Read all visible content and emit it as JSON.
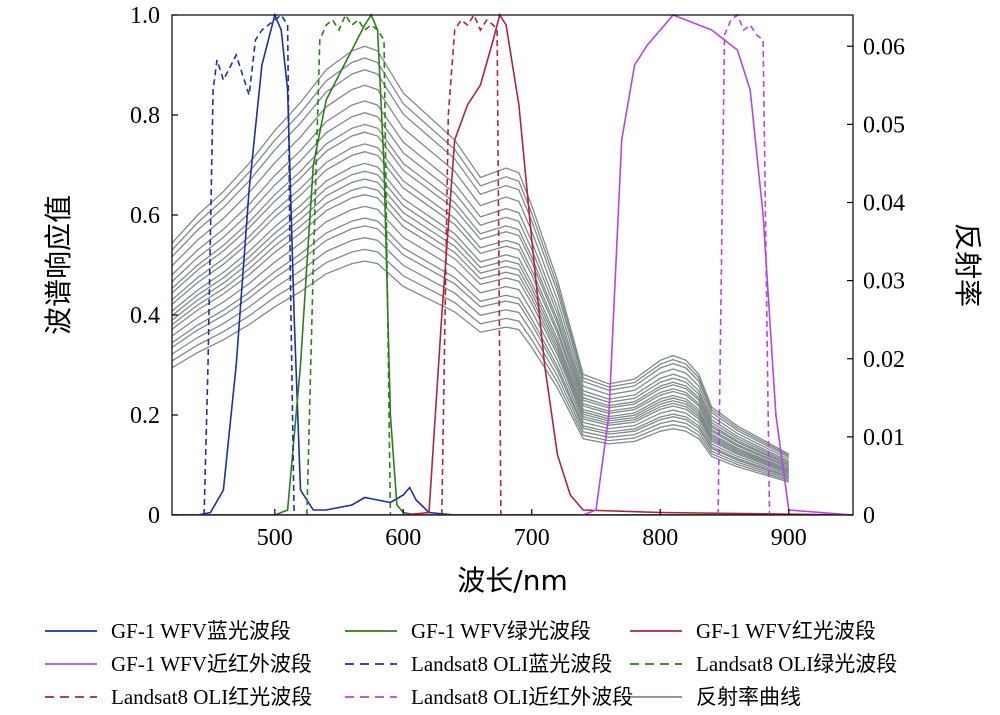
{
  "chart_data": {
    "type": "line",
    "title": "",
    "xlabel": "波长/nm",
    "ylabel_left": "波谱响应值",
    "ylabel_right": "反射率",
    "xlim": [
      420,
      950
    ],
    "ylim_left": [
      0,
      1
    ],
    "ylim_right": [
      0,
      0.064
    ],
    "x_ticks": [
      500,
      600,
      700,
      800,
      900
    ],
    "x_tick_labels": [
      "500",
      "600",
      "700",
      "800",
      "900"
    ],
    "y_left_ticks": [
      0,
      0.2,
      0.4,
      0.6,
      0.8,
      1.0
    ],
    "y_left_tick_labels": [
      "0",
      "0.2",
      "0.4",
      "0.6",
      "0.8",
      "1.0"
    ],
    "y_right_ticks": [
      0,
      0.01,
      0.02,
      0.03,
      0.04,
      0.05,
      0.06
    ],
    "y_right_tick_labels": [
      "0",
      "0.01",
      "0.02",
      "0.03",
      "0.04",
      "0.05",
      "0.06"
    ],
    "grid": false,
    "legend_placement": "bottom",
    "legend_columns": 3,
    "series": [
      {
        "name": "GF-1 WFV蓝光波段",
        "axis": "left",
        "style": "solid",
        "color": "#1f2fa8",
        "x": [
          420,
          440,
          450,
          460,
          470,
          480,
          490,
          500,
          505,
          510,
          515,
          520,
          530,
          540,
          560,
          570,
          580,
          590,
          600,
          605,
          610,
          620,
          640,
          700,
          950
        ],
        "y": [
          0,
          0,
          0.005,
          0.05,
          0.3,
          0.65,
          0.9,
          1.0,
          0.97,
          0.85,
          0.4,
          0.05,
          0.01,
          0.01,
          0.02,
          0.035,
          0.03,
          0.025,
          0.04,
          0.055,
          0.03,
          0.005,
          0,
          0,
          0
        ]
      },
      {
        "name": "GF-1 WFV绿光波段",
        "axis": "left",
        "style": "solid",
        "color": "#2e7d1a",
        "x": [
          420,
          500,
          510,
          520,
          530,
          540,
          550,
          560,
          570,
          575,
          580,
          585,
          590,
          595,
          600,
          610,
          700,
          950
        ],
        "y": [
          0,
          0,
          0.01,
          0.3,
          0.7,
          0.83,
          0.88,
          0.93,
          0.98,
          1.0,
          0.97,
          0.7,
          0.2,
          0.02,
          0.005,
          0,
          0,
          0
        ]
      },
      {
        "name": "GF-1 WFV红光波段",
        "axis": "left",
        "style": "solid",
        "color": "#b0243c",
        "x": [
          420,
          600,
          620,
          630,
          640,
          650,
          660,
          670,
          675,
          680,
          690,
          700,
          710,
          720,
          730,
          740,
          800,
          950
        ],
        "y": [
          0,
          0,
          0.005,
          0.4,
          0.75,
          0.82,
          0.86,
          0.95,
          1.0,
          0.98,
          0.82,
          0.55,
          0.3,
          0.12,
          0.04,
          0.01,
          0.005,
          0
        ]
      },
      {
        "name": "GF-1 WFV近红外波段",
        "axis": "left",
        "style": "solid",
        "color": "#b545e8",
        "x": [
          420,
          740,
          750,
          760,
          770,
          780,
          790,
          800,
          810,
          820,
          830,
          840,
          850,
          860,
          870,
          880,
          890,
          900,
          950
        ],
        "y": [
          0,
          0,
          0.01,
          0.2,
          0.75,
          0.9,
          0.94,
          0.97,
          1.0,
          0.99,
          0.98,
          0.97,
          0.95,
          0.93,
          0.85,
          0.6,
          0.2,
          0.01,
          0
        ]
      },
      {
        "name": "Landsat8 OLI蓝光波段",
        "axis": "left",
        "style": "dashed",
        "color": "#1f2fa8",
        "x": [
          445,
          448,
          452,
          455,
          460,
          470,
          480,
          485,
          490,
          500,
          505,
          510,
          512,
          515
        ],
        "y": [
          0,
          0.3,
          0.85,
          0.91,
          0.87,
          0.92,
          0.84,
          0.95,
          0.97,
          0.99,
          1.0,
          0.98,
          0.5,
          0
        ]
      },
      {
        "name": "Landsat8 OLI绿光波段",
        "axis": "left",
        "style": "dashed",
        "color": "#2e7d1a",
        "x": [
          525,
          530,
          535,
          540,
          545,
          550,
          555,
          560,
          565,
          570,
          575,
          580,
          585,
          590
        ],
        "y": [
          0,
          0.5,
          0.95,
          0.98,
          0.99,
          0.97,
          1.0,
          0.98,
          0.99,
          0.97,
          0.98,
          0.97,
          0.95,
          0
        ]
      },
      {
        "name": "Landsat8 OLI红光波段",
        "axis": "left",
        "style": "dashed",
        "color": "#b0243c",
        "x": [
          630,
          635,
          640,
          645,
          650,
          655,
          660,
          665,
          670,
          673,
          676
        ],
        "y": [
          0,
          0.8,
          0.97,
          0.99,
          0.98,
          1.0,
          0.97,
          0.99,
          0.98,
          0.97,
          0
        ]
      },
      {
        "name": "Landsat8 OLI近红外波段",
        "axis": "left",
        "style": "dashed",
        "color": "#b545e8",
        "x": [
          845,
          850,
          855,
          860,
          865,
          870,
          875,
          880,
          885
        ],
        "y": [
          0,
          0.96,
          0.99,
          1.0,
          0.97,
          0.98,
          0.96,
          0.95,
          0
        ]
      }
    ],
    "reflectance_curves": {
      "name": "反射率曲线",
      "axis": "right",
      "color": "#7f8a8a",
      "x": [
        420,
        440,
        460,
        480,
        500,
        520,
        540,
        560,
        570,
        580,
        600,
        620,
        640,
        660,
        670,
        680,
        690,
        700,
        720,
        740,
        760,
        780,
        800,
        810,
        820,
        830,
        840,
        860,
        880,
        900
      ],
      "shape": [
        0.58,
        0.64,
        0.69,
        0.75,
        0.82,
        0.88,
        0.95,
        0.99,
        1.0,
        0.99,
        0.9,
        0.85,
        0.8,
        0.72,
        0.73,
        0.74,
        0.73,
        0.66,
        0.5,
        0.3,
        0.28,
        0.29,
        0.33,
        0.34,
        0.33,
        0.3,
        0.23,
        0.19,
        0.16,
        0.13
      ],
      "peaks": [
        0.06,
        0.0585,
        0.057,
        0.055,
        0.053,
        0.0515,
        0.05,
        0.049,
        0.0475,
        0.0465,
        0.045,
        0.044,
        0.043,
        0.042,
        0.041,
        0.0395,
        0.038,
        0.037,
        0.0355,
        0.034,
        0.0325
      ]
    },
    "legend": [
      {
        "label": "GF-1 WFV蓝光波段",
        "color": "#1f2fa8",
        "style": "solid"
      },
      {
        "label": "GF-1 WFV绿光波段",
        "color": "#2e7d1a",
        "style": "solid"
      },
      {
        "label": "GF-1 WFV红光波段",
        "color": "#b0243c",
        "style": "solid"
      },
      {
        "label": "GF-1 WFV近红外波段",
        "color": "#b545e8",
        "style": "solid"
      },
      {
        "label": "Landsat8 OLI蓝光波段",
        "color": "#1f2fa8",
        "style": "dashed"
      },
      {
        "label": "Landsat8 OLI绿光波段",
        "color": "#2e7d1a",
        "style": "dashed"
      },
      {
        "label": "Landsat8 OLI红光波段",
        "color": "#b0243c",
        "style": "dashed"
      },
      {
        "label": "Landsat8 OLI近红外波段",
        "color": "#b545e8",
        "style": "dashed"
      },
      {
        "label": "反射率曲线",
        "color": "#7f8a8a",
        "style": "solid"
      }
    ]
  }
}
